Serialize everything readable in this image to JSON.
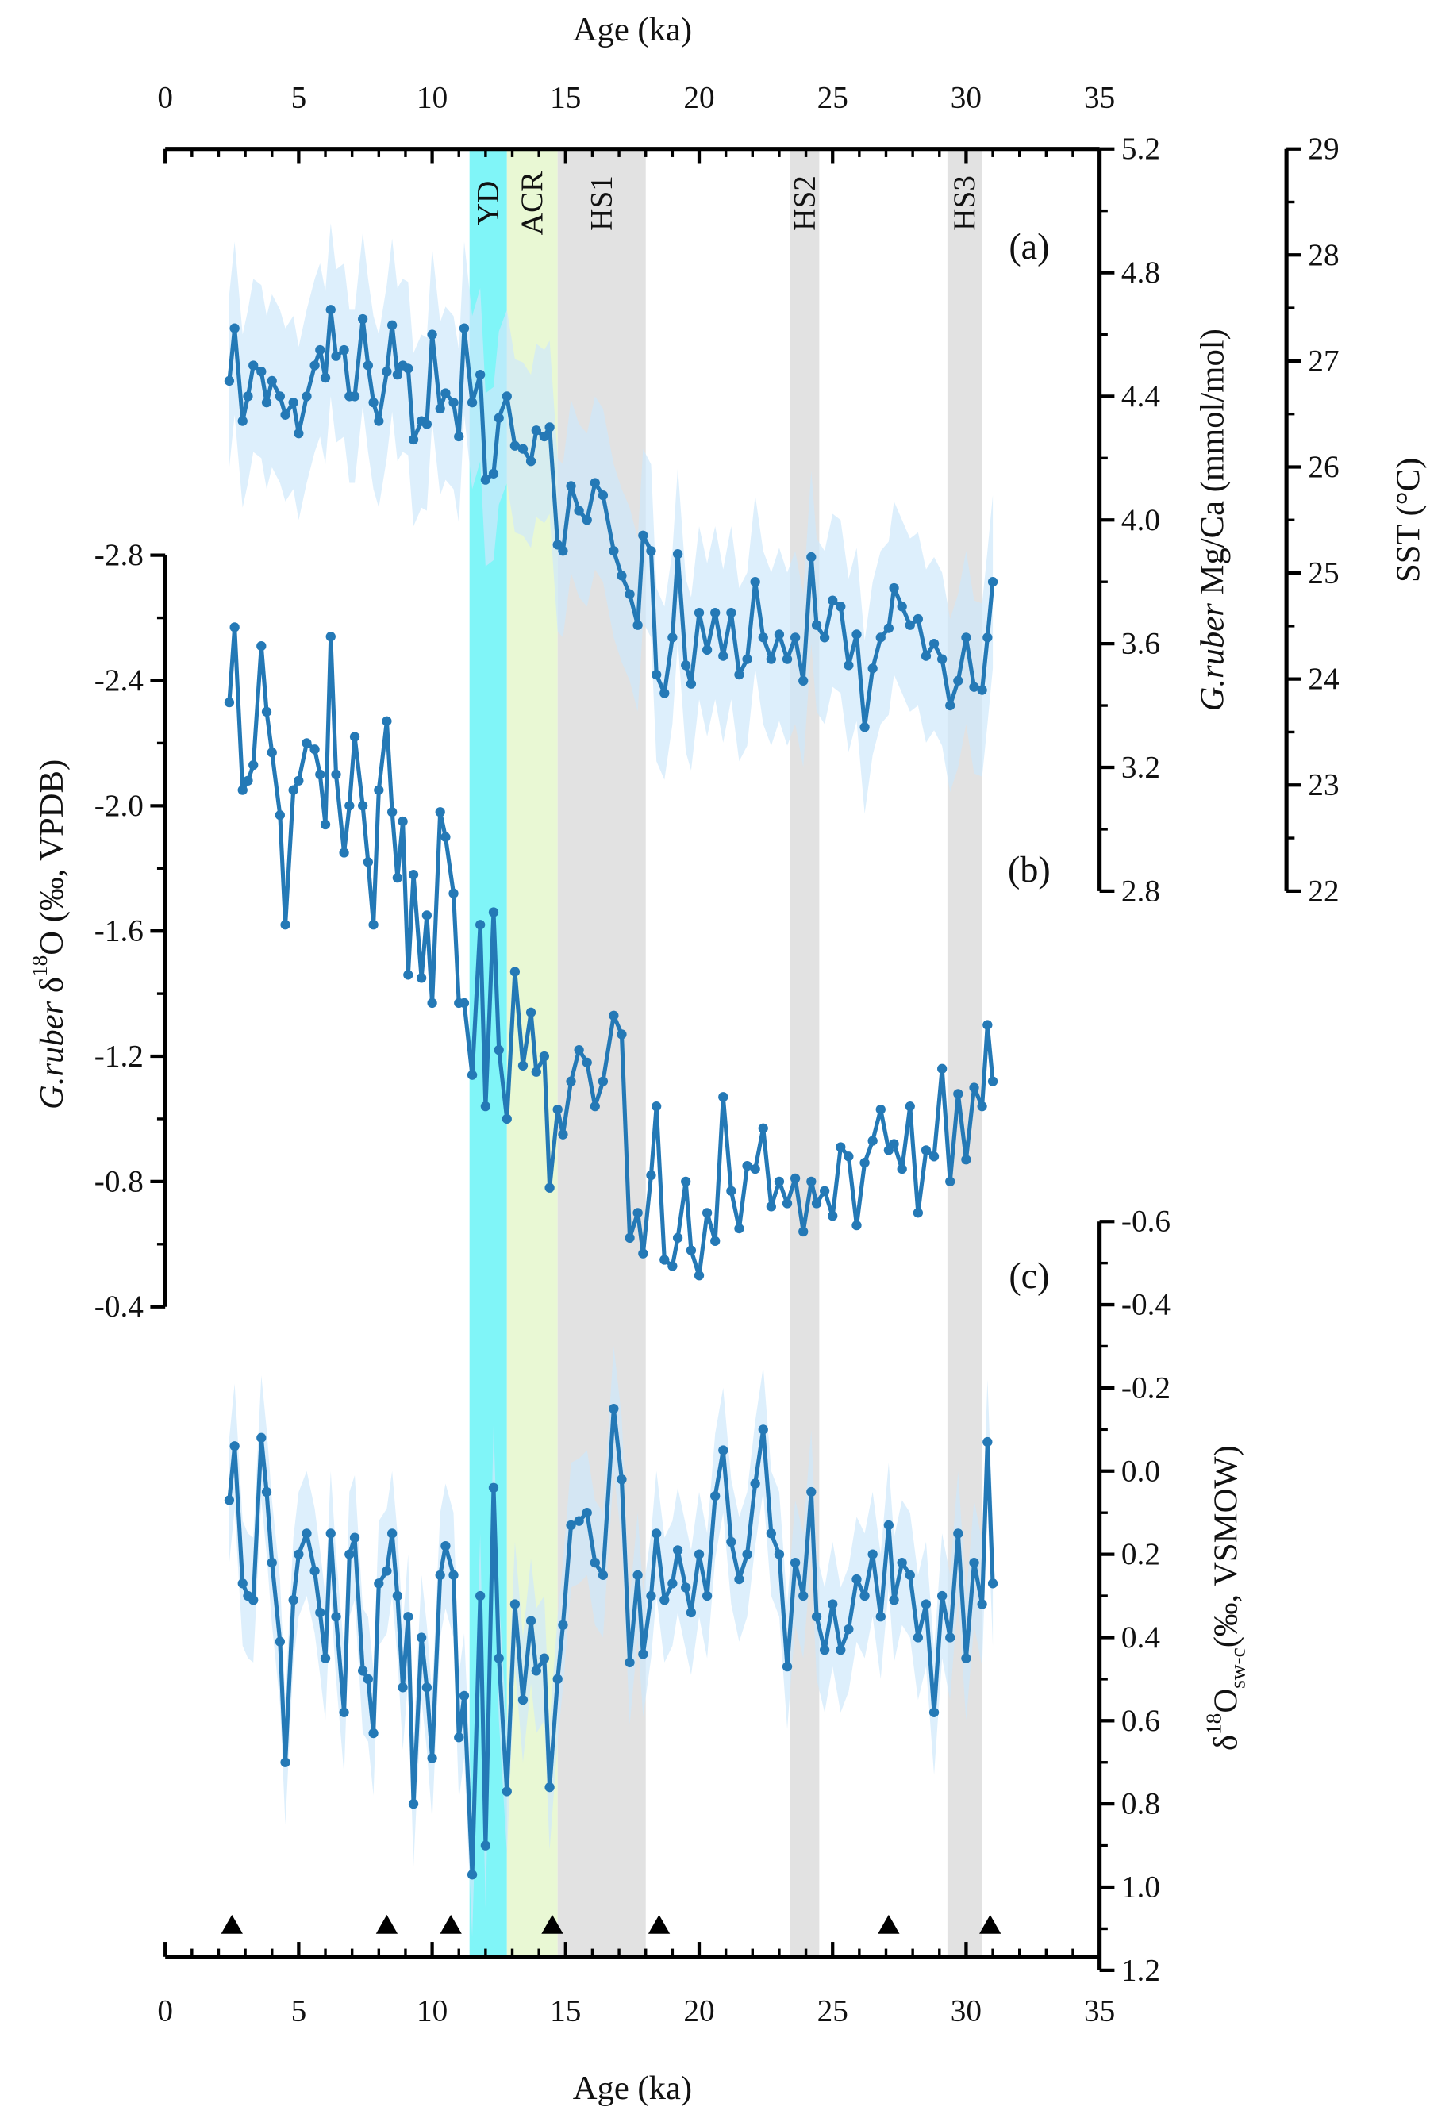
{
  "x_axis": {
    "label": "Age (ka)",
    "xlim": [
      0,
      35
    ],
    "xticks": [
      0,
      5,
      10,
      15,
      20,
      25,
      30,
      35
    ]
  },
  "events": [
    {
      "label": "YD",
      "start": 11.4,
      "end": 12.8,
      "color": "#80f5f8"
    },
    {
      "label": "ACR",
      "start": 12.8,
      "end": 14.7,
      "color": "#e9f8d4"
    },
    {
      "label": "HS1",
      "start": 14.7,
      "end": 18.0,
      "color": "#e2e2e2"
    },
    {
      "label": "HS2",
      "start": 23.4,
      "end": 24.5,
      "color": "#e2e2e2"
    },
    {
      "label": "HS3",
      "start": 29.3,
      "end": 30.6,
      "color": "#e2e2e2"
    }
  ],
  "age_control": [
    2.5,
    8.3,
    10.7,
    14.5,
    18.5,
    27.1,
    30.9
  ],
  "chart_data": [
    {
      "type": "line",
      "panel_label": "(a)",
      "color": "#2479b6",
      "band_color": "#cfe8fb",
      "uncertainty": 0.28,
      "ylabel": [
        {
          "text": "G.ruber",
          "style": "italic"
        },
        {
          "text": " Mg/Ca (mmol/mol)"
        }
      ],
      "ylim": [
        2.8,
        5.2
      ],
      "yticks": [
        2.8,
        3.2,
        3.6,
        {
          "value": 4,
          "label": "4.0"
        },
        4.4,
        4.8,
        5.2
      ],
      "y2label": [
        {
          "text": "SST (°C)"
        }
      ],
      "y2lim": [
        22,
        29
      ],
      "y2ticks": [
        22,
        23,
        24,
        25,
        26,
        27,
        28,
        29
      ],
      "x": [
        2.4,
        2.6,
        2.9,
        3.1,
        3.3,
        3.6,
        3.8,
        4.0,
        4.3,
        4.5,
        4.8,
        5.0,
        5.3,
        5.6,
        5.8,
        6.0,
        6.2,
        6.4,
        6.7,
        6.9,
        7.1,
        7.4,
        7.6,
        7.8,
        8.0,
        8.3,
        8.5,
        8.7,
        8.9,
        9.1,
        9.3,
        9.6,
        9.8,
        10.0,
        10.3,
        10.5,
        10.8,
        11.0,
        11.2,
        11.5,
        11.8,
        12.0,
        12.3,
        12.5,
        12.8,
        13.1,
        13.4,
        13.7,
        13.9,
        14.2,
        14.4,
        14.7,
        14.9,
        15.2,
        15.5,
        15.8,
        16.1,
        16.4,
        16.8,
        17.1,
        17.4,
        17.7,
        17.9,
        18.2,
        18.4,
        18.7,
        19.0,
        19.2,
        19.5,
        19.7,
        20.0,
        20.3,
        20.6,
        20.9,
        21.2,
        21.5,
        21.8,
        22.1,
        22.4,
        22.7,
        23.0,
        23.3,
        23.6,
        23.9,
        24.2,
        24.4,
        24.7,
        25.0,
        25.3,
        25.6,
        25.9,
        26.2,
        26.5,
        26.8,
        27.1,
        27.3,
        27.6,
        27.9,
        28.2,
        28.5,
        28.8,
        29.1,
        29.4,
        29.7,
        30.0,
        30.3,
        30.6,
        30.8,
        31.0
      ],
      "values": [
        4.45,
        4.62,
        4.32,
        4.4,
        4.5,
        4.48,
        4.38,
        4.45,
        4.4,
        4.34,
        4.38,
        4.28,
        4.4,
        4.5,
        4.55,
        4.46,
        4.68,
        4.53,
        4.55,
        4.4,
        4.4,
        4.65,
        4.5,
        4.38,
        4.32,
        4.48,
        4.63,
        4.47,
        4.5,
        4.49,
        4.26,
        4.32,
        4.31,
        4.6,
        4.36,
        4.41,
        4.38,
        4.27,
        4.62,
        4.38,
        4.47,
        4.13,
        4.15,
        4.33,
        4.4,
        4.24,
        4.23,
        4.19,
        4.29,
        4.27,
        4.3,
        3.92,
        3.9,
        4.11,
        4.03,
        4.0,
        4.12,
        4.08,
        3.9,
        3.82,
        3.76,
        3.66,
        3.95,
        3.9,
        3.5,
        3.44,
        3.62,
        3.89,
        3.53,
        3.47,
        3.7,
        3.58,
        3.7,
        3.56,
        3.7,
        3.5,
        3.55,
        3.8,
        3.62,
        3.55,
        3.63,
        3.55,
        3.62,
        3.48,
        3.88,
        3.66,
        3.62,
        3.74,
        3.72,
        3.53,
        3.63,
        3.33,
        3.52,
        3.62,
        3.65,
        3.78,
        3.72,
        3.66,
        3.68,
        3.56,
        3.6,
        3.55,
        3.4,
        3.48,
        3.62,
        3.46,
        3.45,
        3.62,
        3.8
      ]
    },
    {
      "type": "line",
      "panel_label": "(b)",
      "color": "#2479b6",
      "ylabel": [
        {
          "text": "G.ruber",
          "style": "italic"
        },
        {
          "text": " δ"
        },
        {
          "text": "18",
          "style": "super"
        },
        {
          "text": "O (‰, VPDB)"
        }
      ],
      "ylim": [
        -0.4,
        -2.8
      ],
      "yticks": [
        -2.8,
        -2.4,
        {
          "value": -2,
          "label": "-2.0"
        },
        -1.6,
        -1.2,
        -0.8,
        -0.4
      ],
      "x": [
        2.4,
        2.6,
        2.9,
        3.1,
        3.3,
        3.6,
        3.8,
        4.0,
        4.3,
        4.5,
        4.8,
        5.0,
        5.3,
        5.6,
        5.8,
        6.0,
        6.2,
        6.4,
        6.7,
        6.9,
        7.1,
        7.4,
        7.6,
        7.8,
        8.0,
        8.3,
        8.5,
        8.7,
        8.9,
        9.1,
        9.3,
        9.6,
        9.8,
        10.0,
        10.3,
        10.5,
        10.8,
        11.0,
        11.2,
        11.5,
        11.8,
        12.0,
        12.3,
        12.5,
        12.8,
        13.1,
        13.4,
        13.7,
        13.9,
        14.2,
        14.4,
        14.7,
        14.9,
        15.2,
        15.5,
        15.8,
        16.1,
        16.4,
        16.8,
        17.1,
        17.4,
        17.7,
        17.9,
        18.2,
        18.4,
        18.7,
        19.0,
        19.2,
        19.5,
        19.7,
        20.0,
        20.3,
        20.6,
        20.9,
        21.2,
        21.5,
        21.8,
        22.1,
        22.4,
        22.7,
        23.0,
        23.3,
        23.6,
        23.9,
        24.2,
        24.4,
        24.7,
        25.0,
        25.3,
        25.6,
        25.9,
        26.2,
        26.5,
        26.8,
        27.1,
        27.3,
        27.6,
        27.9,
        28.2,
        28.5,
        28.8,
        29.1,
        29.4,
        29.7,
        30.0,
        30.3,
        30.6,
        30.8,
        31.0
      ],
      "values": [
        -2.33,
        -2.57,
        -2.05,
        -2.08,
        -2.13,
        -2.51,
        -2.3,
        -2.17,
        -1.97,
        -1.62,
        -2.05,
        -2.08,
        -2.2,
        -2.18,
        -2.1,
        -1.94,
        -2.54,
        -2.1,
        -1.85,
        -2.0,
        -2.22,
        -2.0,
        -1.82,
        -1.62,
        -2.05,
        -2.27,
        -1.98,
        -1.77,
        -1.95,
        -1.46,
        -1.78,
        -1.45,
        -1.65,
        -1.37,
        -1.98,
        -1.9,
        -1.72,
        -1.37,
        -1.37,
        -1.14,
        -1.62,
        -1.04,
        -1.66,
        -1.22,
        -1.0,
        -1.47,
        -1.17,
        -1.34,
        -1.15,
        -1.2,
        -0.78,
        -1.03,
        -0.95,
        -1.12,
        -1.22,
        -1.18,
        -1.04,
        -1.12,
        -1.33,
        -1.27,
        -0.62,
        -0.7,
        -0.57,
        -0.82,
        -1.04,
        -0.55,
        -0.53,
        -0.62,
        -0.8,
        -0.58,
        -0.5,
        -0.7,
        -0.61,
        -1.07,
        -0.77,
        -0.65,
        -0.85,
        -0.84,
        -0.97,
        -0.72,
        -0.8,
        -0.73,
        -0.81,
        -0.64,
        -0.8,
        -0.73,
        -0.77,
        -0.69,
        -0.91,
        -0.88,
        -0.66,
        -0.86,
        -0.93,
        -1.03,
        -0.9,
        -0.92,
        -0.84,
        -1.04,
        -0.7,
        -0.9,
        -0.88,
        -1.16,
        -0.8,
        -1.08,
        -0.87,
        -1.1,
        -1.04,
        -1.3,
        -1.12
      ]
    },
    {
      "type": "line",
      "panel_label": "(c)",
      "color": "#2479b6",
      "band_color": "#cfe8fb",
      "uncertainty": 0.15,
      "ylabel": [
        {
          "text": "δ"
        },
        {
          "text": "18",
          "style": "super"
        },
        {
          "text": "O"
        },
        {
          "text": "sw-c",
          "style": "sub"
        },
        {
          "text": "(‰, VSMOW)"
        }
      ],
      "ylim": [
        1.2,
        -0.6
      ],
      "yticks": [
        -0.6,
        -0.4,
        -0.2,
        {
          "value": 0,
          "label": "0.0"
        },
        0.2,
        0.4,
        0.6,
        0.8,
        {
          "value": 1,
          "label": "1.0"
        },
        1.2
      ],
      "x": [
        2.4,
        2.6,
        2.9,
        3.1,
        3.3,
        3.6,
        3.8,
        4.0,
        4.3,
        4.5,
        4.8,
        5.0,
        5.3,
        5.6,
        5.8,
        6.0,
        6.2,
        6.4,
        6.7,
        6.9,
        7.1,
        7.4,
        7.6,
        7.8,
        8.0,
        8.3,
        8.5,
        8.7,
        8.9,
        9.1,
        9.3,
        9.6,
        9.8,
        10.0,
        10.3,
        10.5,
        10.8,
        11.0,
        11.2,
        11.5,
        11.8,
        12.0,
        12.3,
        12.5,
        12.8,
        13.1,
        13.4,
        13.7,
        13.9,
        14.2,
        14.4,
        14.7,
        14.9,
        15.2,
        15.5,
        15.8,
        16.1,
        16.4,
        16.8,
        17.1,
        17.4,
        17.7,
        17.9,
        18.2,
        18.4,
        18.7,
        19.0,
        19.2,
        19.5,
        19.7,
        20.0,
        20.3,
        20.6,
        20.9,
        21.2,
        21.5,
        21.8,
        22.1,
        22.4,
        22.7,
        23.0,
        23.3,
        23.6,
        23.9,
        24.2,
        24.4,
        24.7,
        25.0,
        25.3,
        25.6,
        25.9,
        26.2,
        26.5,
        26.8,
        27.1,
        27.3,
        27.6,
        27.9,
        28.2,
        28.5,
        28.8,
        29.1,
        29.4,
        29.7,
        30.0,
        30.3,
        30.6,
        30.8,
        31.0
      ],
      "values": [
        0.07,
        -0.06,
        0.27,
        0.3,
        0.31,
        -0.08,
        0.05,
        0.22,
        0.41,
        0.7,
        0.31,
        0.2,
        0.15,
        0.24,
        0.34,
        0.45,
        0.15,
        0.35,
        0.58,
        0.2,
        0.16,
        0.48,
        0.5,
        0.63,
        0.27,
        0.24,
        0.15,
        0.3,
        0.52,
        0.35,
        0.8,
        0.4,
        0.52,
        0.69,
        0.25,
        0.18,
        0.25,
        0.64,
        0.54,
        0.97,
        0.3,
        0.9,
        0.04,
        0.45,
        0.77,
        0.32,
        0.55,
        0.36,
        0.48,
        0.45,
        0.76,
        0.5,
        0.37,
        0.13,
        0.12,
        0.1,
        0.22,
        0.25,
        -0.15,
        0.02,
        0.46,
        0.25,
        0.44,
        0.3,
        0.15,
        0.31,
        0.27,
        0.19,
        0.28,
        0.34,
        0.2,
        0.3,
        0.06,
        -0.05,
        0.17,
        0.26,
        0.2,
        0.03,
        -0.1,
        0.15,
        0.2,
        0.47,
        0.22,
        0.3,
        0.05,
        0.35,
        0.43,
        0.32,
        0.43,
        0.38,
        0.26,
        0.3,
        0.2,
        0.35,
        0.13,
        0.31,
        0.22,
        0.25,
        0.4,
        0.32,
        0.58,
        0.3,
        0.4,
        0.15,
        0.45,
        0.22,
        0.32,
        -0.07,
        0.27
      ]
    }
  ]
}
